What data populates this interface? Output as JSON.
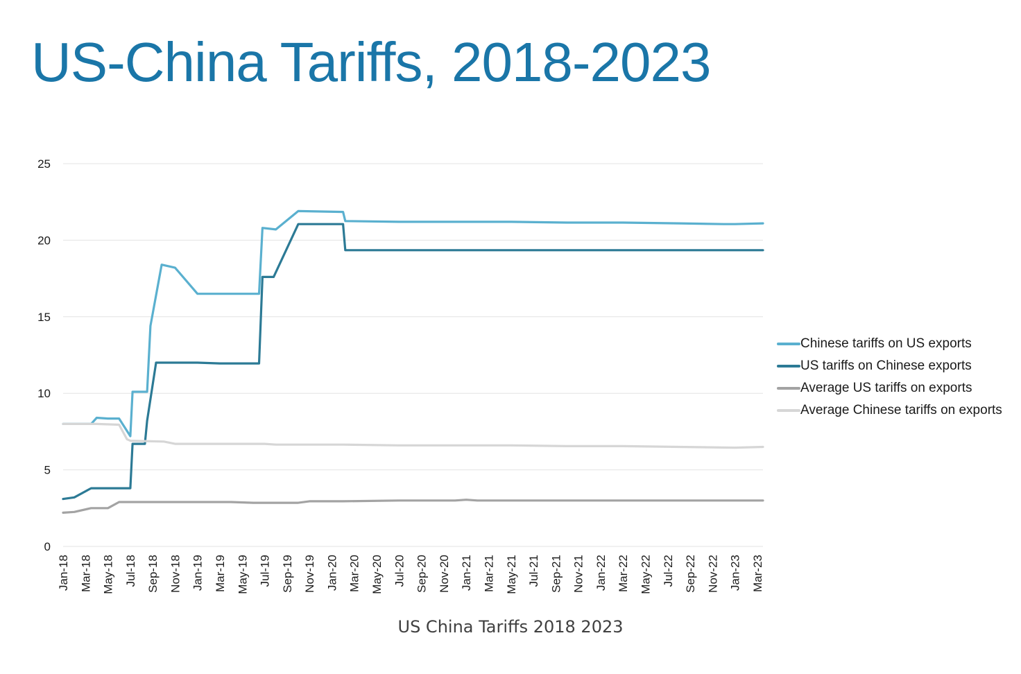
{
  "title": "US-China Tariffs, 2018-2023",
  "caption": "US China Tariffs 2018 2023",
  "chart_data": {
    "type": "line",
    "ylim": [
      0,
      25
    ],
    "yticks": [
      0,
      5,
      10,
      15,
      20,
      25
    ],
    "grid": "horizontal",
    "legend_position": "right",
    "x_tick_labels": [
      "Jan-18",
      "Mar-18",
      "May-18",
      "Jul-18",
      "Sep-18",
      "Nov-18",
      "Jan-19",
      "Mar-19",
      "May-19",
      "Jul-19",
      "Sep-19",
      "Nov-19",
      "Jan-20",
      "Mar-20",
      "May-20",
      "Jul-20",
      "Sep-20",
      "Nov-20",
      "Jan-21",
      "Mar-21",
      "May-21",
      "Jul-21",
      "Sep-21",
      "Nov-21",
      "Jan-22",
      "Mar-22",
      "May-22",
      "Jul-22",
      "Sep-22",
      "Nov-22",
      "Jan-23",
      "Mar-23"
    ],
    "x_range": [
      0,
      62.5
    ],
    "series": [
      {
        "name": "Chinese tariffs on US exports",
        "color": "#5ab0cf",
        "points": [
          [
            0,
            8.0
          ],
          [
            2.5,
            8.0
          ],
          [
            3,
            8.4
          ],
          [
            4,
            8.35
          ],
          [
            5,
            8.35
          ],
          [
            6,
            7.2
          ],
          [
            6.2,
            10.1
          ],
          [
            7.5,
            10.1
          ],
          [
            7.8,
            14.4
          ],
          [
            8.8,
            18.4
          ],
          [
            10,
            18.2
          ],
          [
            12,
            16.5
          ],
          [
            17.5,
            16.5
          ],
          [
            17.8,
            20.8
          ],
          [
            19,
            20.7
          ],
          [
            21,
            21.9
          ],
          [
            25,
            21.85
          ],
          [
            25.2,
            21.25
          ],
          [
            30,
            21.2
          ],
          [
            35,
            21.2
          ],
          [
            40,
            21.2
          ],
          [
            45,
            21.15
          ],
          [
            50,
            21.15
          ],
          [
            55,
            21.1
          ],
          [
            59,
            21.05
          ],
          [
            60,
            21.05
          ],
          [
            62.5,
            21.1
          ]
        ]
      },
      {
        "name": "US tariffs on Chinese exports",
        "color": "#2c7a95",
        "points": [
          [
            0,
            3.1
          ],
          [
            1,
            3.2
          ],
          [
            2.5,
            3.8
          ],
          [
            6,
            3.8
          ],
          [
            6.2,
            6.7
          ],
          [
            7.3,
            6.7
          ],
          [
            7.5,
            8.2
          ],
          [
            8.3,
            12.0
          ],
          [
            12,
            12.0
          ],
          [
            14,
            11.95
          ],
          [
            17.5,
            11.95
          ],
          [
            17.8,
            17.6
          ],
          [
            18.8,
            17.6
          ],
          [
            21,
            21.05
          ],
          [
            25,
            21.05
          ],
          [
            25.2,
            19.35
          ],
          [
            35,
            19.35
          ],
          [
            45,
            19.35
          ],
          [
            55,
            19.35
          ],
          [
            60,
            19.35
          ],
          [
            62.5,
            19.35
          ]
        ]
      },
      {
        "name": "Average US tariffs on exports",
        "color": "#a3a3a3",
        "points": [
          [
            0,
            2.2
          ],
          [
            1,
            2.25
          ],
          [
            2.5,
            2.5
          ],
          [
            4,
            2.5
          ],
          [
            5,
            2.9
          ],
          [
            10,
            2.9
          ],
          [
            15,
            2.9
          ],
          [
            17,
            2.85
          ],
          [
            21,
            2.85
          ],
          [
            22,
            2.95
          ],
          [
            25,
            2.95
          ],
          [
            30,
            3.0
          ],
          [
            35,
            3.0
          ],
          [
            36,
            3.05
          ],
          [
            37,
            3.0
          ],
          [
            45,
            3.0
          ],
          [
            55,
            3.0
          ],
          [
            62.5,
            3.0
          ]
        ]
      },
      {
        "name": "Average Chinese tariffs on exports",
        "color": "#d6d6d6",
        "points": [
          [
            0,
            8.0
          ],
          [
            3,
            8.0
          ],
          [
            5,
            7.95
          ],
          [
            5.7,
            7.0
          ],
          [
            6,
            6.9
          ],
          [
            9,
            6.85
          ],
          [
            10,
            6.7
          ],
          [
            18,
            6.7
          ],
          [
            19,
            6.65
          ],
          [
            25,
            6.65
          ],
          [
            30,
            6.6
          ],
          [
            35,
            6.6
          ],
          [
            40,
            6.6
          ],
          [
            45,
            6.55
          ],
          [
            50,
            6.55
          ],
          [
            55,
            6.5
          ],
          [
            60,
            6.45
          ],
          [
            62.5,
            6.5
          ]
        ]
      }
    ]
  }
}
